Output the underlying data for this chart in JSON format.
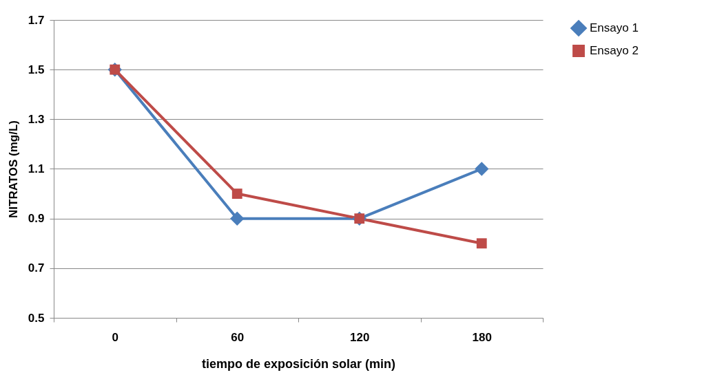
{
  "chart_data": {
    "type": "line",
    "xlabel": "tiempo de exposición solar (min)",
    "ylabel": "NITRATOS (mg/L)",
    "categories": [
      "0",
      "60",
      "120",
      "180"
    ],
    "series": [
      {
        "name": "Ensayo 1",
        "color": "#4a7ebb",
        "marker": "diamond",
        "values": [
          1.5,
          0.9,
          0.9,
          1.1
        ]
      },
      {
        "name": "Ensayo 2",
        "color": "#be4b48",
        "marker": "square",
        "values": [
          1.5,
          1.0,
          0.9,
          0.8
        ]
      }
    ],
    "ylim": [
      0.5,
      1.7
    ],
    "yticks": [
      0.5,
      0.7,
      0.9,
      1.1,
      1.3,
      1.5,
      1.7
    ],
    "grid": "y",
    "legend": "right"
  }
}
